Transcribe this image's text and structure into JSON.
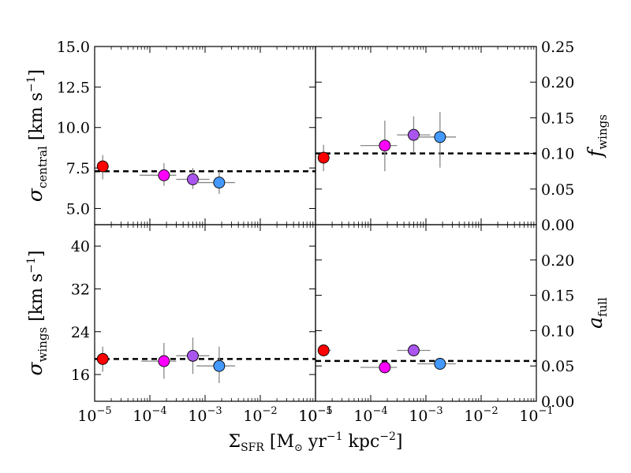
{
  "chart_data": {
    "type": "scatter",
    "figure": "2x2 panel scatter with error bars vs star formation rate surface density",
    "xlabel": {
      "main": "Σ",
      "main_sub": "SFR",
      "units_open": " [M",
      "units_sun_sub": "⊙",
      "units_mid": " yr",
      "units_sup1": "−1",
      "units_mid2": " kpc",
      "units_sup2": "−2",
      "units_close": "]"
    },
    "x_scale": "log",
    "xlim": [
      1e-05,
      0.1
    ],
    "x_tick_values": [
      1e-05,
      0.0001,
      0.001,
      0.01,
      0.1
    ],
    "x_tick_labels_left": [
      "10",
      "10",
      "10",
      "10",
      "10"
    ],
    "x_tick_exponents_left": [
      "−5",
      "−4",
      "−3",
      "−2",
      "−1"
    ],
    "x_tick_labels_right": [
      "10",
      "10",
      "10",
      "10",
      "10"
    ],
    "x_tick_exponents_right": [
      "−5",
      "−4",
      "−3",
      "−2",
      "−1"
    ],
    "point_colors": [
      "#ff0000",
      "#ff00ff",
      "#aa55ee",
      "#4499ff"
    ],
    "panels": [
      {
        "id": "sigma_central",
        "position": "top-left",
        "ylabel": {
          "sym": "σ",
          "sub": "central",
          "units_open": " [km s",
          "units_sup": "−1",
          "units_close": "]"
        },
        "ylabel_side": "left",
        "ylim": [
          4.0,
          15.0
        ],
        "y_ticks": [
          5.0,
          7.5,
          10.0,
          12.5,
          15.0
        ],
        "y_tick_labels": [
          "5.0",
          "7.5",
          "10.0",
          "12.5",
          "15.0"
        ],
        "reference_line": 7.3,
        "points": [
          {
            "x": 1.4e-05,
            "y": 7.6,
            "xerr": [
              1.3e-05,
              1.8e-05
            ],
            "yerr": [
              6.8,
              8.3
            ]
          },
          {
            "x": 0.00018,
            "y": 7.05,
            "xerr": [
              6.5e-05,
              0.0003
            ],
            "yerr": [
              6.4,
              7.8
            ]
          },
          {
            "x": 0.0006,
            "y": 6.8,
            "xerr": [
              0.0003,
              0.0012
            ],
            "yerr": [
              6.2,
              7.5
            ]
          },
          {
            "x": 0.0018,
            "y": 6.6,
            "xerr": [
              0.0007,
              0.0035
            ],
            "yerr": [
              5.9,
              7.3
            ]
          }
        ]
      },
      {
        "id": "f_wings",
        "position": "top-right",
        "ylabel": {
          "sym": "f",
          "sub": "wings"
        },
        "ylabel_side": "right",
        "ylim": [
          0.0,
          0.25
        ],
        "y_ticks": [
          0.0,
          0.05,
          0.1,
          0.15,
          0.2,
          0.25
        ],
        "y_tick_labels": [
          "0.00",
          "0.05",
          "0.10",
          "0.15",
          "0.20",
          "0.25"
        ],
        "reference_line": 0.1,
        "points": [
          {
            "x": 1.4e-05,
            "y": 0.094,
            "xerr": [
              1.2e-05,
              1.8e-05
            ],
            "yerr": [
              0.075,
              0.112
            ]
          },
          {
            "x": 0.00018,
            "y": 0.111,
            "xerr": [
              6.5e-05,
              0.0003
            ],
            "yerr": [
              0.075,
              0.146
            ]
          },
          {
            "x": 0.0006,
            "y": 0.126,
            "xerr": [
              0.0003,
              0.0012
            ],
            "yerr": [
              0.102,
              0.152
            ]
          },
          {
            "x": 0.0018,
            "y": 0.123,
            "xerr": [
              0.0007,
              0.0035
            ],
            "yerr": [
              0.08,
              0.158
            ]
          }
        ]
      },
      {
        "id": "sigma_wings",
        "position": "bottom-left",
        "ylabel": {
          "sym": "σ",
          "sub": "wings",
          "units_open": " [km s",
          "units_sup": "−1",
          "units_close": "]"
        },
        "ylabel_side": "left",
        "ylim": [
          11.0,
          44.0
        ],
        "y_ticks": [
          16,
          24,
          32,
          40
        ],
        "y_tick_labels": [
          "16",
          "24",
          "32",
          "40"
        ],
        "reference_line": 18.9,
        "points": [
          {
            "x": 1.4e-05,
            "y": 18.9,
            "xerr": [
              1.25e-05,
              1.6e-05
            ],
            "yerr": [
              16.5,
              21.2
            ]
          },
          {
            "x": 0.00018,
            "y": 18.5,
            "xerr": [
              7e-05,
              0.0003
            ],
            "yerr": [
              15.2,
              21.9
            ]
          },
          {
            "x": 0.0006,
            "y": 19.5,
            "xerr": [
              0.0003,
              0.0012
            ],
            "yerr": [
              16.1,
              22.9
            ]
          },
          {
            "x": 0.0018,
            "y": 17.6,
            "xerr": [
              0.0007,
              0.0035
            ],
            "yerr": [
              14.4,
              21.2
            ]
          }
        ]
      },
      {
        "id": "a_full",
        "position": "bottom-right",
        "ylabel": {
          "sym": "a",
          "sub": "full"
        },
        "ylabel_side": "right",
        "ylim": [
          0.0,
          0.25
        ],
        "y_ticks": [
          0.0,
          0.05,
          0.1,
          0.15,
          0.2
        ],
        "y_tick_labels": [
          "0.00",
          "0.05",
          "0.10",
          "0.15",
          "0.20"
        ],
        "reference_line": 0.057,
        "points": [
          {
            "x": 1.4e-05,
            "y": 0.072,
            "xerr": [
              1.3e-05,
              1.9e-05
            ],
            "yerr": [
              0.072,
              0.072
            ]
          },
          {
            "x": 0.00018,
            "y": 0.048,
            "xerr": [
              6.5e-05,
              0.0003
            ],
            "yerr": [
              0.048,
              0.048
            ]
          },
          {
            "x": 0.0006,
            "y": 0.072,
            "xerr": [
              0.0003,
              0.0012
            ],
            "yerr": [
              0.072,
              0.072
            ]
          },
          {
            "x": 0.0018,
            "y": 0.053,
            "xerr": [
              0.0007,
              0.0035
            ],
            "yerr": [
              0.053,
              0.053
            ]
          }
        ]
      }
    ]
  }
}
